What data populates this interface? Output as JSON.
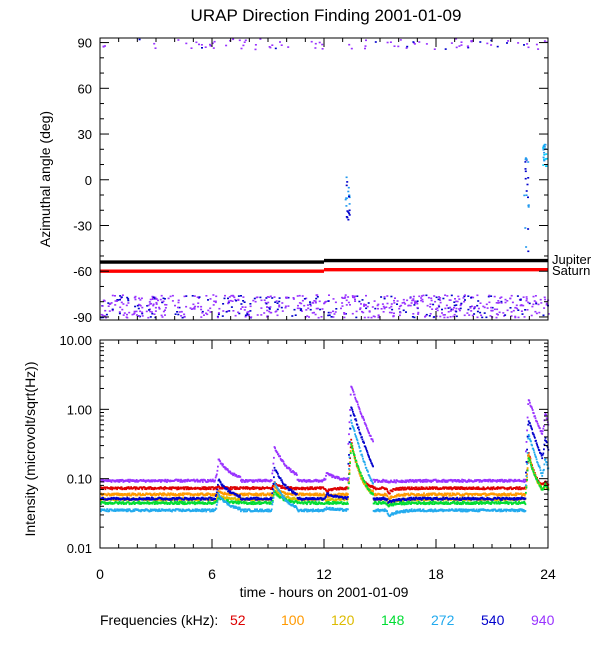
{
  "chart_data": [
    {
      "type": "scatter",
      "title": "URAP Direction Finding  2001-01-09",
      "xlabel": "",
      "ylabel": "Azimuthal angle (deg)",
      "xlim": [
        0,
        24
      ],
      "ylim": [
        -92,
        93
      ],
      "x_ticks": [
        0,
        6,
        12,
        18,
        24
      ],
      "y_ticks": [
        90,
        60,
        30,
        0,
        -30,
        -60,
        -90
      ],
      "y_tick_labels": [
        "90",
        "60",
        "30",
        "0",
        "-30",
        "-60",
        "-90"
      ],
      "reference_lines": [
        {
          "name": "Jupiter",
          "color": "#000000",
          "y_start": -54,
          "y_end": -53
        },
        {
          "name": "Saturn",
          "color": "#ff0000",
          "y_start": -60,
          "y_end": -59
        }
      ],
      "scatter_bands": [
        {
          "name": "top-band",
          "color": "#9933ff",
          "y_min": 86,
          "y_max": 93
        },
        {
          "name": "bottom-band",
          "color": "#9933ff",
          "y_min": -90,
          "y_max": -75
        }
      ],
      "events": [
        {
          "x": 13.2,
          "y_min": -28,
          "y_max": 5,
          "colors": [
            "#2299ee",
            "#0000cc"
          ]
        },
        {
          "x": 22.8,
          "y_min": -48,
          "y_max": 15,
          "colors": [
            "#2299ee",
            "#0000cc"
          ]
        },
        {
          "x": 23.8,
          "y_min": 8,
          "y_max": 24,
          "colors": [
            "#2299ee",
            "#00ccff"
          ]
        }
      ]
    },
    {
      "type": "line",
      "title": "",
      "xlabel": "time - hours on 2001-01-09",
      "ylabel": "Intensity (microvolt/sqrt(Hz))",
      "xlim": [
        0,
        24
      ],
      "ylim": [
        0.01,
        10
      ],
      "yscale": "log",
      "x_ticks": [
        0,
        6,
        12,
        18,
        24
      ],
      "x_tick_labels": [
        "0",
        "6",
        "12",
        "18",
        "24"
      ],
      "y_ticks": [
        10,
        1,
        0.1,
        0.01
      ],
      "y_tick_labels": [
        "10.00",
        "1.00",
        "0.10",
        "0.01"
      ],
      "series": [
        {
          "name": "52",
          "color": "#dd0000",
          "baseline": 0.075
        },
        {
          "name": "100",
          "color": "#ff9900",
          "baseline": 0.061
        },
        {
          "name": "120",
          "color": "#ddbb00",
          "baseline": 0.052
        },
        {
          "name": "148",
          "color": "#00dd33",
          "baseline": 0.046
        },
        {
          "name": "272",
          "color": "#22aaee",
          "baseline": 0.036
        },
        {
          "name": "540",
          "color": "#0000cc",
          "baseline": 0.053
        },
        {
          "name": "940",
          "color": "#9933ff",
          "baseline": 0.096
        }
      ],
      "peaks": [
        {
          "x": 6.3,
          "value": 0.19
        },
        {
          "x": 9.3,
          "value": 0.28
        },
        {
          "x": 12.1,
          "value": 0.12
        },
        {
          "x": 13.4,
          "value": 2.2
        },
        {
          "x": 15.4,
          "value": 0.09
        },
        {
          "x": 22.9,
          "value": 1.4
        },
        {
          "x": 23.8,
          "value": 0.25
        }
      ]
    }
  ],
  "legend": {
    "title": "Frequencies (kHz):",
    "items": [
      {
        "label": "52",
        "color": "#dd0000"
      },
      {
        "label": "100",
        "color": "#ff9900"
      },
      {
        "label": "120",
        "color": "#ddbb00"
      },
      {
        "label": "148",
        "color": "#00dd33"
      },
      {
        "label": "272",
        "color": "#22aaee"
      },
      {
        "label": "540",
        "color": "#0000cc"
      },
      {
        "label": "940",
        "color": "#9933ff"
      }
    ]
  }
}
